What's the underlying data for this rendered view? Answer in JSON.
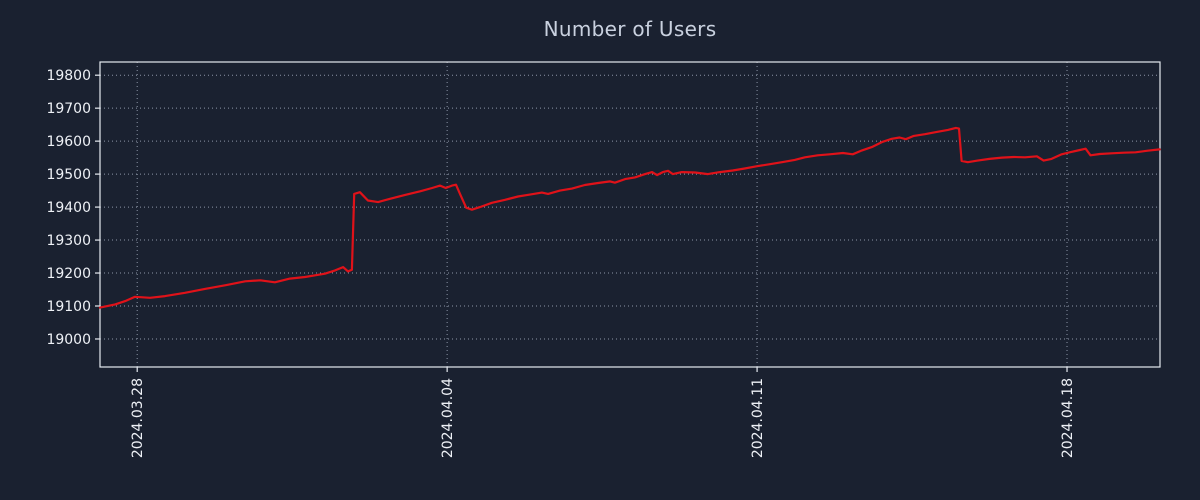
{
  "colors": {
    "background": "#1a2130",
    "axis": "#e6eaf0",
    "grid": "#8d96a8",
    "tick_text": "#eef1f6",
    "title_text": "#c9d1df",
    "line": "#e01219"
  },
  "chart_data": {
    "type": "line",
    "title": "Number of Users",
    "xlabel": "",
    "ylabel": "",
    "grid": "dotted",
    "legend": "none",
    "xlim": [
      -0.84,
      23.1
    ],
    "ylim": [
      18915,
      19840
    ],
    "yticks": [
      19000,
      19100,
      19200,
      19300,
      19400,
      19500,
      19600,
      19700,
      19800
    ],
    "xticks": [
      {
        "label": "2024.03.28",
        "value": 0
      },
      {
        "label": "2024.04.04",
        "value": 7
      },
      {
        "label": "2024.04.11",
        "value": 14
      },
      {
        "label": "2024.04.18",
        "value": 21
      }
    ],
    "x_unit": "days since 2024.03.28",
    "series": [
      {
        "name": "Number of Users",
        "color": "#e01219",
        "x": [
          -0.84,
          -0.5,
          -0.27,
          -0.05,
          0.29,
          0.63,
          1.08,
          1.53,
          2.0,
          2.44,
          2.78,
          3.11,
          3.45,
          3.79,
          4.02,
          4.24,
          4.47,
          4.65,
          4.76,
          4.85,
          4.9,
          5.03,
          5.21,
          5.44,
          5.71,
          6.05,
          6.39,
          6.66,
          6.84,
          6.97,
          7.11,
          7.2,
          7.29,
          7.43,
          7.56,
          7.74,
          8.01,
          8.31,
          8.6,
          8.87,
          9.14,
          9.28,
          9.55,
          9.82,
          10.11,
          10.41,
          10.68,
          10.79,
          11.02,
          11.24,
          11.47,
          11.63,
          11.74,
          11.87,
          11.99,
          12.1,
          12.3,
          12.6,
          12.89,
          13.16,
          13.45,
          13.72,
          14.0,
          14.29,
          14.56,
          14.85,
          15.08,
          15.37,
          15.64,
          15.94,
          16.16,
          16.37,
          16.59,
          16.82,
          17.04,
          17.22,
          17.36,
          17.54,
          17.79,
          18.06,
          18.31,
          18.49,
          18.56,
          18.62,
          18.76,
          18.98,
          19.25,
          19.53,
          19.8,
          20.05,
          20.32,
          20.47,
          20.65,
          20.88,
          21.06,
          21.29,
          21.42,
          21.53,
          21.74,
          22.01,
          22.28,
          22.55,
          22.82,
          23.09
        ],
        "y": [
          19095,
          19105,
          19115,
          19128,
          19125,
          19130,
          19140,
          19152,
          19163,
          19175,
          19178,
          19172,
          19183,
          19188,
          19193,
          19198,
          19208,
          19218,
          19205,
          19210,
          19440,
          19445,
          19420,
          19415,
          19425,
          19437,
          19448,
          19458,
          19465,
          19458,
          19465,
          19468,
          19440,
          19398,
          19392,
          19400,
          19413,
          19422,
          19432,
          19438,
          19444,
          19440,
          19450,
          19456,
          19467,
          19473,
          19478,
          19474,
          19485,
          19490,
          19500,
          19506,
          19497,
          19506,
          19510,
          19500,
          19506,
          19505,
          19500,
          19506,
          19511,
          19517,
          19524,
          19530,
          19536,
          19543,
          19551,
          19557,
          19560,
          19564,
          19560,
          19572,
          19582,
          19597,
          19607,
          19611,
          19606,
          19616,
          19621,
          19628,
          19634,
          19640,
          19638,
          19540,
          19536,
          19541,
          19546,
          19550,
          19552,
          19551,
          19554,
          19541,
          19546,
          19560,
          19566,
          19573,
          19577,
          19557,
          19561,
          19563,
          19565,
          19566,
          19571,
          19575
        ]
      }
    ]
  }
}
